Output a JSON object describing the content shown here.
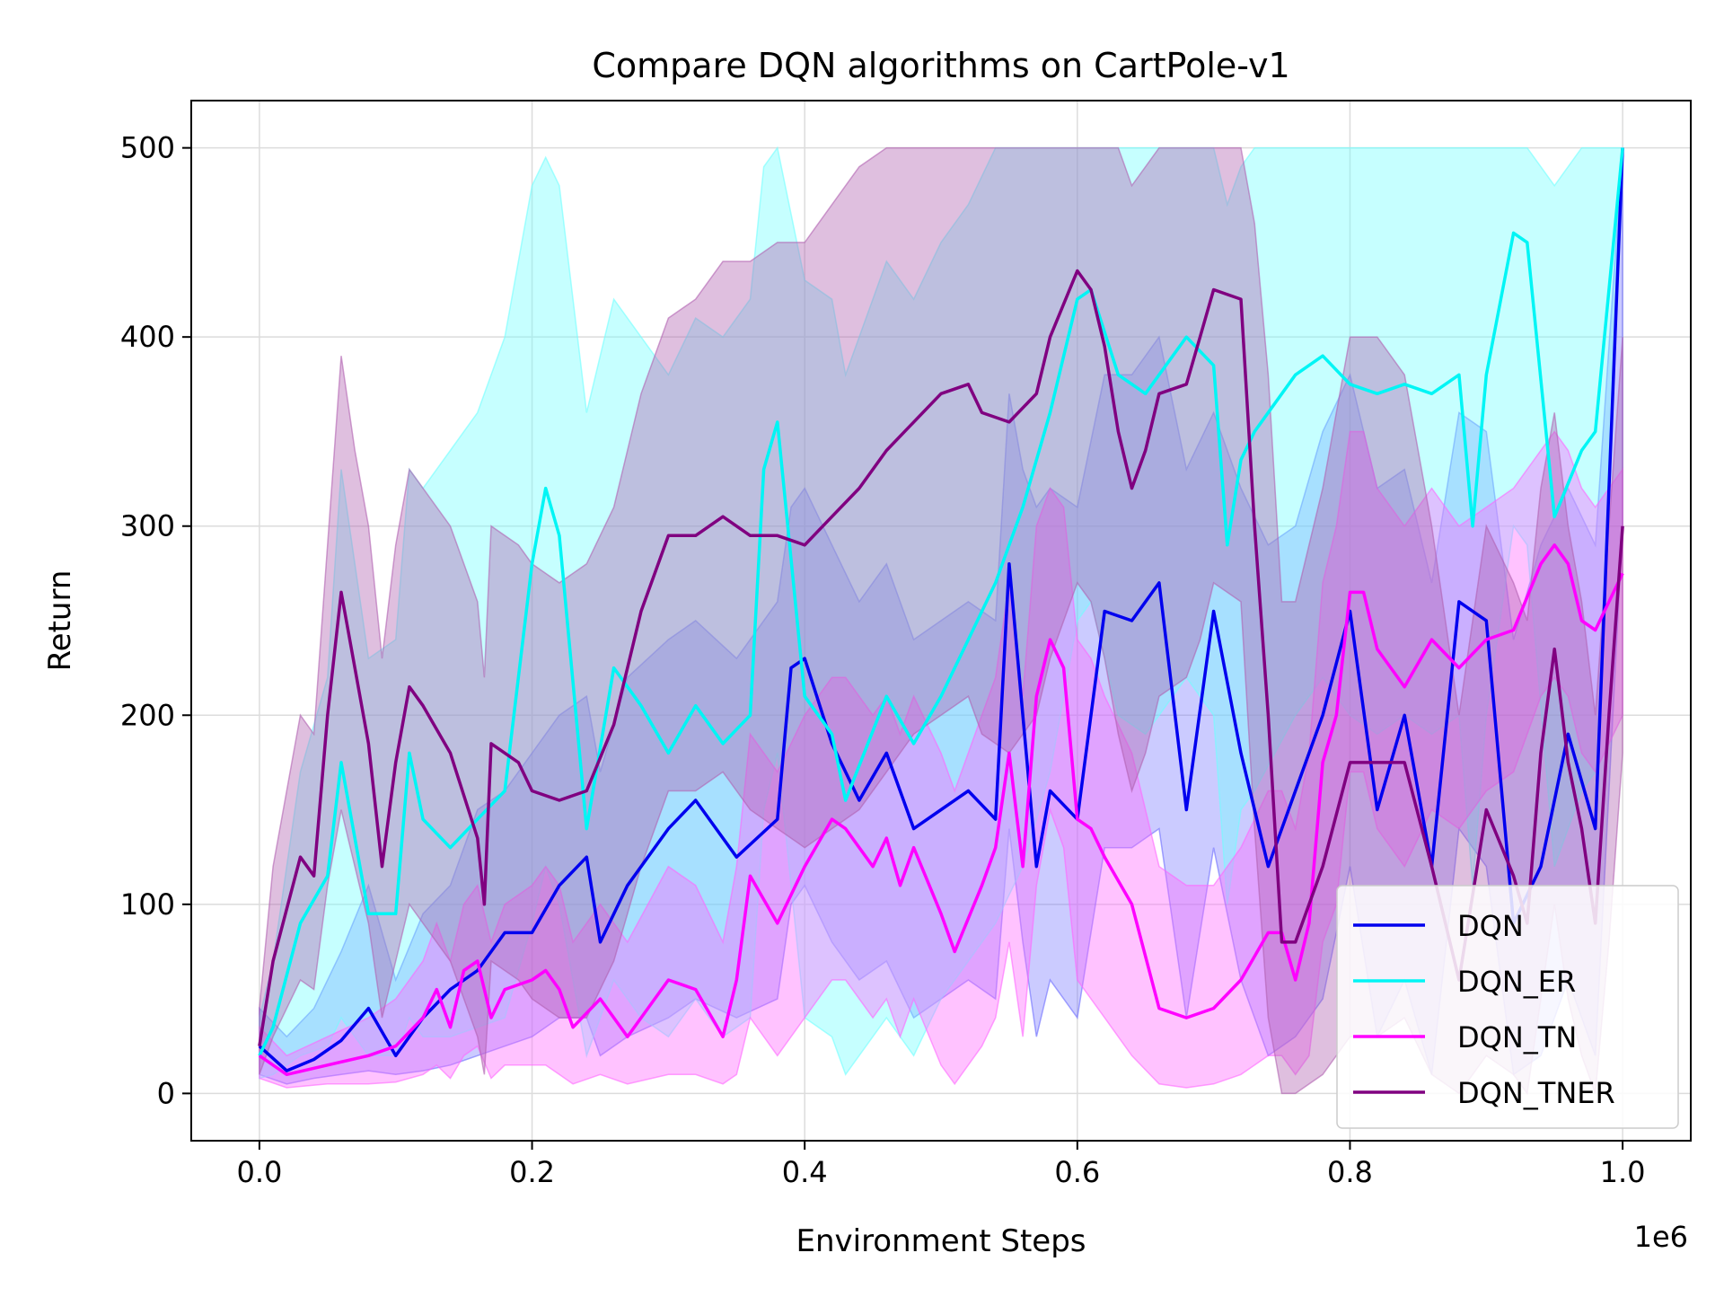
{
  "chart_data": {
    "type": "line",
    "title": "Compare DQN algorithms on CartPole-v1",
    "xlabel": "Environment Steps",
    "ylabel": "Return",
    "x_offset_label": "1e6",
    "xlim": [
      -0.05,
      1.05
    ],
    "ylim": [
      -25,
      525
    ],
    "xticks": [
      0.0,
      0.2,
      0.4,
      0.6,
      0.8,
      1.0
    ],
    "xtick_labels": [
      "0.0",
      "0.2",
      "0.4",
      "0.6",
      "0.8",
      "1.0"
    ],
    "yticks": [
      0,
      100,
      200,
      300,
      400,
      500
    ],
    "ytick_labels": [
      "0",
      "100",
      "200",
      "300",
      "400",
      "500"
    ],
    "grid": true,
    "legend_position": "bottom-right",
    "series": [
      {
        "name": "DQN",
        "color": "#0000ee",
        "band_color": "#6a6aff",
        "band_opacity": 0.35,
        "x": [
          0,
          0.02,
          0.04,
          0.06,
          0.08,
          0.1,
          0.12,
          0.14,
          0.16,
          0.18,
          0.2,
          0.22,
          0.24,
          0.25,
          0.27,
          0.3,
          0.32,
          0.35,
          0.38,
          0.39,
          0.4,
          0.42,
          0.44,
          0.46,
          0.48,
          0.5,
          0.52,
          0.54,
          0.55,
          0.56,
          0.57,
          0.58,
          0.6,
          0.62,
          0.64,
          0.66,
          0.68,
          0.7,
          0.72,
          0.74,
          0.76,
          0.78,
          0.8,
          0.82,
          0.84,
          0.86,
          0.88,
          0.9,
          0.92,
          0.94,
          0.96,
          0.98,
          1.0
        ],
        "y": [
          25,
          12,
          18,
          28,
          45,
          20,
          40,
          55,
          65,
          85,
          85,
          110,
          125,
          80,
          110,
          140,
          155,
          125,
          145,
          225,
          230,
          185,
          155,
          180,
          140,
          150,
          160,
          145,
          280,
          200,
          120,
          160,
          145,
          255,
          250,
          270,
          150,
          255,
          180,
          120,
          160,
          200,
          255,
          150,
          200,
          120,
          260,
          250,
          90,
          120,
          190,
          140,
          500
        ],
        "upper": [
          45,
          30,
          45,
          75,
          110,
          60,
          95,
          110,
          150,
          160,
          180,
          200,
          210,
          170,
          220,
          240,
          250,
          230,
          260,
          310,
          320,
          290,
          260,
          280,
          240,
          250,
          260,
          250,
          370,
          330,
          310,
          320,
          310,
          380,
          380,
          400,
          330,
          360,
          320,
          290,
          300,
          350,
          380,
          320,
          330,
          270,
          360,
          350,
          240,
          290,
          320,
          290,
          500
        ],
        "lower": [
          10,
          5,
          8,
          10,
          12,
          10,
          12,
          15,
          20,
          25,
          30,
          40,
          40,
          20,
          30,
          40,
          50,
          40,
          50,
          100,
          110,
          80,
          60,
          70,
          40,
          50,
          60,
          50,
          140,
          80,
          30,
          60,
          40,
          130,
          130,
          140,
          40,
          130,
          60,
          20,
          30,
          50,
          120,
          30,
          60,
          10,
          140,
          120,
          10,
          20,
          60,
          20,
          300
        ]
      },
      {
        "name": "DQN_ER",
        "color": "#00f5f5",
        "band_color": "#70ffff",
        "band_opacity": 0.4,
        "x": [
          0,
          0.01,
          0.03,
          0.05,
          0.06,
          0.08,
          0.1,
          0.11,
          0.12,
          0.14,
          0.16,
          0.18,
          0.2,
          0.21,
          0.22,
          0.24,
          0.26,
          0.28,
          0.3,
          0.32,
          0.34,
          0.36,
          0.37,
          0.38,
          0.4,
          0.42,
          0.43,
          0.46,
          0.48,
          0.5,
          0.52,
          0.54,
          0.56,
          0.58,
          0.6,
          0.61,
          0.63,
          0.65,
          0.68,
          0.7,
          0.71,
          0.72,
          0.73,
          0.76,
          0.78,
          0.8,
          0.82,
          0.84,
          0.86,
          0.88,
          0.89,
          0.9,
          0.92,
          0.93,
          0.95,
          0.97,
          0.98,
          1.0
        ],
        "y": [
          20,
          35,
          90,
          115,
          175,
          95,
          95,
          180,
          145,
          130,
          145,
          160,
          280,
          320,
          295,
          140,
          225,
          205,
          180,
          205,
          185,
          200,
          330,
          355,
          210,
          190,
          155,
          210,
          185,
          210,
          240,
          270,
          310,
          360,
          420,
          425,
          380,
          370,
          400,
          385,
          290,
          335,
          350,
          380,
          390,
          375,
          370,
          375,
          370,
          380,
          300,
          380,
          455,
          450,
          305,
          340,
          350,
          500
        ],
        "upper": [
          40,
          70,
          170,
          220,
          330,
          230,
          240,
          330,
          320,
          340,
          360,
          400,
          480,
          495,
          480,
          360,
          420,
          400,
          380,
          410,
          400,
          420,
          490,
          500,
          430,
          420,
          380,
          440,
          420,
          450,
          470,
          500,
          500,
          500,
          500,
          500,
          500,
          500,
          500,
          500,
          470,
          490,
          500,
          500,
          500,
          500,
          500,
          500,
          500,
          500,
          500,
          500,
          500,
          500,
          480,
          500,
          500,
          500
        ],
        "lower": [
          8,
          10,
          20,
          25,
          40,
          20,
          20,
          40,
          30,
          30,
          35,
          40,
          90,
          120,
          100,
          20,
          60,
          40,
          30,
          50,
          30,
          40,
          150,
          180,
          40,
          30,
          10,
          40,
          20,
          50,
          70,
          90,
          120,
          170,
          250,
          260,
          200,
          190,
          220,
          200,
          100,
          150,
          160,
          200,
          220,
          200,
          190,
          200,
          190,
          200,
          110,
          200,
          300,
          290,
          120,
          160,
          170,
          500
        ]
      },
      {
        "name": "DQN_TN",
        "color": "#ff00ff",
        "band_color": "#ff66ff",
        "band_opacity": 0.4,
        "x": [
          0,
          0.02,
          0.05,
          0.08,
          0.1,
          0.12,
          0.13,
          0.14,
          0.15,
          0.16,
          0.17,
          0.18,
          0.2,
          0.21,
          0.22,
          0.23,
          0.25,
          0.27,
          0.3,
          0.32,
          0.34,
          0.35,
          0.36,
          0.38,
          0.4,
          0.42,
          0.43,
          0.45,
          0.46,
          0.47,
          0.48,
          0.5,
          0.51,
          0.53,
          0.54,
          0.55,
          0.56,
          0.57,
          0.58,
          0.59,
          0.6,
          0.61,
          0.62,
          0.64,
          0.66,
          0.68,
          0.7,
          0.72,
          0.74,
          0.75,
          0.76,
          0.77,
          0.78,
          0.79,
          0.8,
          0.81,
          0.82,
          0.84,
          0.86,
          0.88,
          0.9,
          0.92,
          0.94,
          0.95,
          0.96,
          0.97,
          0.98,
          1.0
        ],
        "y": [
          20,
          10,
          15,
          20,
          25,
          40,
          55,
          35,
          65,
          70,
          40,
          55,
          60,
          65,
          55,
          35,
          50,
          30,
          60,
          55,
          30,
          60,
          115,
          90,
          120,
          145,
          140,
          120,
          135,
          110,
          130,
          95,
          75,
          110,
          130,
          180,
          120,
          210,
          240,
          225,
          145,
          140,
          125,
          100,
          45,
          40,
          45,
          60,
          85,
          85,
          60,
          90,
          175,
          200,
          265,
          265,
          235,
          215,
          240,
          225,
          240,
          245,
          280,
          290,
          280,
          250,
          245,
          275
        ],
        "upper": [
          35,
          20,
          30,
          40,
          50,
          70,
          90,
          70,
          100,
          110,
          80,
          100,
          110,
          120,
          110,
          80,
          100,
          80,
          120,
          110,
          80,
          120,
          190,
          170,
          200,
          220,
          220,
          200,
          210,
          190,
          210,
          180,
          160,
          200,
          220,
          270,
          210,
          300,
          320,
          310,
          240,
          230,
          210,
          180,
          120,
          110,
          110,
          130,
          160,
          160,
          140,
          180,
          270,
          300,
          350,
          350,
          320,
          300,
          320,
          300,
          310,
          320,
          340,
          350,
          340,
          320,
          310,
          330
        ],
        "lower": [
          8,
          3,
          5,
          5,
          6,
          10,
          15,
          8,
          20,
          25,
          8,
          15,
          15,
          15,
          10,
          5,
          10,
          5,
          10,
          10,
          5,
          10,
          40,
          20,
          40,
          60,
          60,
          40,
          50,
          30,
          50,
          15,
          5,
          25,
          40,
          80,
          30,
          110,
          150,
          130,
          60,
          50,
          40,
          20,
          5,
          3,
          5,
          10,
          20,
          20,
          10,
          20,
          80,
          100,
          170,
          170,
          140,
          120,
          150,
          140,
          160,
          170,
          210,
          220,
          210,
          180,
          170,
          200
        ]
      },
      {
        "name": "DQN_TNER",
        "color": "#800080",
        "band_color": "#b060b0",
        "band_opacity": 0.4,
        "x": [
          0,
          0.01,
          0.03,
          0.04,
          0.05,
          0.06,
          0.07,
          0.08,
          0.09,
          0.1,
          0.11,
          0.12,
          0.14,
          0.16,
          0.165,
          0.17,
          0.19,
          0.2,
          0.22,
          0.24,
          0.26,
          0.28,
          0.3,
          0.32,
          0.34,
          0.36,
          0.38,
          0.4,
          0.42,
          0.44,
          0.46,
          0.48,
          0.5,
          0.52,
          0.53,
          0.55,
          0.57,
          0.58,
          0.6,
          0.61,
          0.62,
          0.63,
          0.64,
          0.65,
          0.66,
          0.68,
          0.69,
          0.7,
          0.72,
          0.73,
          0.74,
          0.75,
          0.76,
          0.78,
          0.8,
          0.82,
          0.84,
          0.86,
          0.88,
          0.9,
          0.92,
          0.93,
          0.94,
          0.95,
          0.96,
          0.97,
          0.98,
          0.99,
          1.0
        ],
        "y": [
          25,
          70,
          125,
          115,
          200,
          265,
          225,
          185,
          120,
          175,
          215,
          205,
          180,
          135,
          100,
          185,
          175,
          160,
          155,
          160,
          195,
          255,
          295,
          295,
          305,
          295,
          295,
          290,
          305,
          320,
          340,
          355,
          370,
          375,
          360,
          355,
          370,
          400,
          435,
          425,
          395,
          350,
          320,
          340,
          370,
          375,
          400,
          425,
          420,
          300,
          200,
          80,
          80,
          120,
          175,
          175,
          175,
          120,
          60,
          150,
          115,
          90,
          180,
          235,
          175,
          140,
          90,
          200,
          300
        ],
        "upper": [
          45,
          120,
          200,
          190,
          290,
          390,
          340,
          300,
          230,
          290,
          330,
          320,
          300,
          260,
          220,
          300,
          290,
          280,
          270,
          280,
          310,
          370,
          410,
          420,
          440,
          440,
          450,
          450,
          470,
          490,
          500,
          500,
          500,
          500,
          500,
          500,
          500,
          500,
          500,
          500,
          500,
          500,
          480,
          490,
          500,
          500,
          500,
          500,
          500,
          460,
          380,
          260,
          260,
          320,
          400,
          400,
          380,
          300,
          200,
          300,
          270,
          250,
          320,
          360,
          300,
          260,
          200,
          300,
          400
        ],
        "lower": [
          10,
          30,
          60,
          55,
          110,
          150,
          120,
          90,
          40,
          70,
          100,
          90,
          70,
          30,
          10,
          70,
          60,
          50,
          40,
          40,
          70,
          120,
          160,
          160,
          170,
          150,
          140,
          130,
          140,
          150,
          170,
          190,
          200,
          210,
          190,
          180,
          200,
          230,
          270,
          260,
          230,
          190,
          160,
          180,
          210,
          220,
          240,
          270,
          260,
          140,
          40,
          0,
          0,
          10,
          30,
          30,
          40,
          10,
          0,
          20,
          10,
          0,
          50,
          100,
          50,
          20,
          0,
          80,
          180
        ]
      }
    ]
  }
}
